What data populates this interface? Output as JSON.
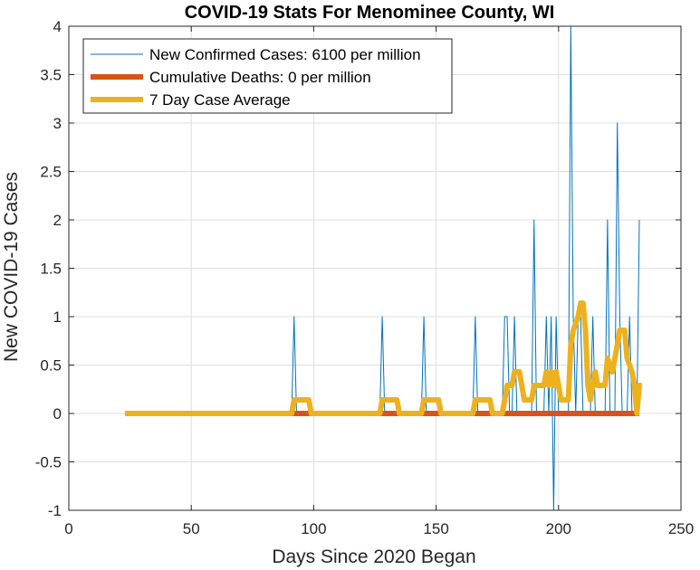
{
  "chart_data": {
    "type": "line",
    "title": "COVID-19 Stats For Menominee County, WI",
    "xlabel": "Days Since 2020 Began",
    "ylabel": "New COVID-19 Cases",
    "xlim": [
      0,
      250
    ],
    "ylim": [
      -1,
      4
    ],
    "xticks": [
      0,
      50,
      100,
      150,
      200,
      250
    ],
    "yticks": [
      -1,
      -0.5,
      0,
      0.5,
      1,
      1.5,
      2,
      2.5,
      3,
      3.5,
      4
    ],
    "grid": true,
    "legend_position": "top-left",
    "series": [
      {
        "name": "New Confirmed Cases: 6100 per million",
        "color": "#0072BD",
        "line_width": "thin",
        "points": [
          [
            23,
            0
          ],
          [
            91,
            0
          ],
          [
            92,
            1
          ],
          [
            93,
            0
          ],
          [
            127,
            0
          ],
          [
            128,
            1
          ],
          [
            129,
            0
          ],
          [
            144,
            0
          ],
          [
            145,
            1
          ],
          [
            146,
            0
          ],
          [
            165,
            0
          ],
          [
            166,
            1
          ],
          [
            167,
            0
          ],
          [
            177,
            0
          ],
          [
            178,
            1
          ],
          [
            179,
            1
          ],
          [
            180,
            0
          ],
          [
            181,
            0
          ],
          [
            182,
            1
          ],
          [
            183,
            0
          ],
          [
            189,
            0
          ],
          [
            190,
            2
          ],
          [
            191,
            0
          ],
          [
            194,
            0
          ],
          [
            195,
            1
          ],
          [
            196,
            0
          ],
          [
            197,
            1
          ],
          [
            198,
            -1
          ],
          [
            199,
            1
          ],
          [
            200,
            0
          ],
          [
            204,
            0
          ],
          [
            205,
            4
          ],
          [
            206,
            1
          ],
          [
            207,
            0
          ],
          [
            208,
            1
          ],
          [
            209,
            1
          ],
          [
            210,
            0
          ],
          [
            213,
            0
          ],
          [
            214,
            1
          ],
          [
            215,
            0
          ],
          [
            219,
            0
          ],
          [
            220,
            2
          ],
          [
            221,
            0
          ],
          [
            223,
            0
          ],
          [
            224,
            3
          ],
          [
            225,
            1
          ],
          [
            226,
            0
          ],
          [
            228,
            0
          ],
          [
            229,
            1
          ],
          [
            230,
            0
          ],
          [
            232,
            0
          ],
          [
            233,
            2
          ]
        ]
      },
      {
        "name": "Cumulative Deaths: 0 per million",
        "color": "#D95319",
        "line_width": "thick",
        "points": [
          [
            23,
            0
          ],
          [
            233,
            0
          ]
        ]
      },
      {
        "name": "7 Day Case Average",
        "color": "#EDB120",
        "line_width": "thick",
        "points": [
          [
            23,
            0
          ],
          [
            91,
            0
          ],
          [
            92,
            0.14
          ],
          [
            98,
            0.14
          ],
          [
            99,
            0
          ],
          [
            127,
            0
          ],
          [
            128,
            0.14
          ],
          [
            134,
            0.14
          ],
          [
            135,
            0
          ],
          [
            144,
            0
          ],
          [
            145,
            0.14
          ],
          [
            151,
            0.14
          ],
          [
            152,
            0
          ],
          [
            165,
            0
          ],
          [
            166,
            0.14
          ],
          [
            172,
            0.14
          ],
          [
            173,
            0
          ],
          [
            177,
            0
          ],
          [
            178,
            0.14
          ],
          [
            179,
            0.29
          ],
          [
            181,
            0.29
          ],
          [
            182,
            0.43
          ],
          [
            184,
            0.43
          ],
          [
            185,
            0.29
          ],
          [
            186,
            0.14
          ],
          [
            189,
            0.14
          ],
          [
            190,
            0.29
          ],
          [
            194,
            0.29
          ],
          [
            195,
            0.43
          ],
          [
            196,
            0.29
          ],
          [
            197,
            0.43
          ],
          [
            198,
            0.29
          ],
          [
            199,
            0.43
          ],
          [
            200,
            0.29
          ],
          [
            201,
            0.14
          ],
          [
            204,
            0.14
          ],
          [
            205,
            0.71
          ],
          [
            206,
            0.86
          ],
          [
            208,
            1.0
          ],
          [
            209,
            1.14
          ],
          [
            210,
            1.14
          ],
          [
            211,
            0.86
          ],
          [
            212,
            0.29
          ],
          [
            213,
            0.14
          ],
          [
            214,
            0.29
          ],
          [
            215,
            0.43
          ],
          [
            216,
            0.29
          ],
          [
            219,
            0.29
          ],
          [
            220,
            0.57
          ],
          [
            222,
            0.43
          ],
          [
            224,
            0.71
          ],
          [
            225,
            0.86
          ],
          [
            227,
            0.86
          ],
          [
            228,
            0.57
          ],
          [
            230,
            0.43
          ],
          [
            231,
            0.29
          ],
          [
            232,
            0
          ],
          [
            233,
            0.29
          ],
          [
            234,
            0.29
          ]
        ]
      }
    ]
  }
}
